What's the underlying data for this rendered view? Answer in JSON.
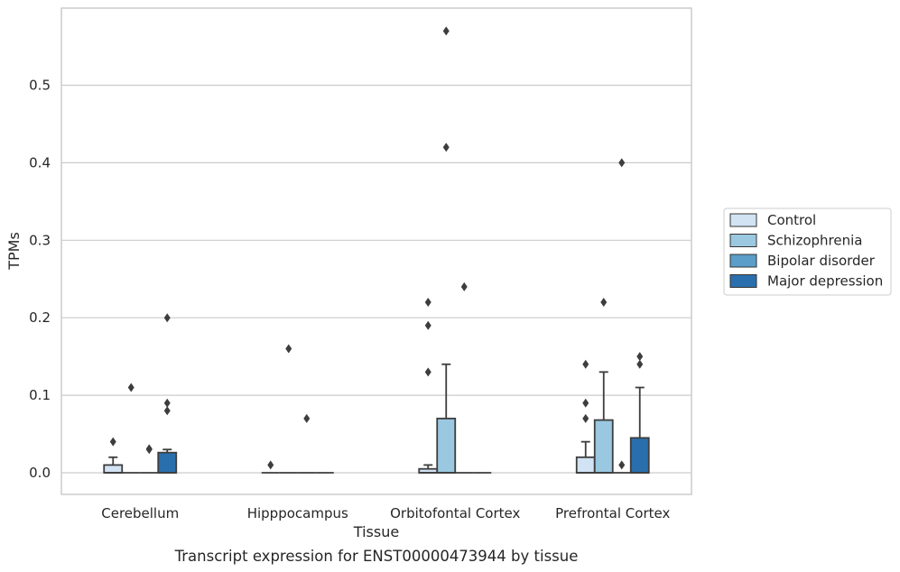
{
  "chart_data": {
    "type": "box",
    "title": "",
    "caption": "Transcript expression for ENST00000473944 by tissue",
    "xlabel": "Tissue",
    "ylabel": "TPMs",
    "ylim": [
      -0.028,
      0.6
    ],
    "yticks": [
      0.0,
      0.1,
      0.2,
      0.3,
      0.4,
      0.5
    ],
    "ytick_labels": [
      "0.0",
      "0.1",
      "0.2",
      "0.3",
      "0.4",
      "0.5"
    ],
    "grid": "horizontal",
    "legend_position": "right",
    "categories": [
      "Cerebellum",
      "Hipppocampus",
      "Orbitofontal Cortex",
      "Prefrontal Cortex"
    ],
    "series": [
      {
        "name": "Control",
        "color": "#d2e3f3",
        "boxes": [
          {
            "q1": 0.0,
            "median": 0.0,
            "q3": 0.01,
            "whisker_low": 0.0,
            "whisker_high": 0.02,
            "outliers": [
              0.04
            ]
          },
          {
            "q1": 0.0,
            "median": 0.0,
            "q3": 0.0,
            "whisker_low": 0.0,
            "whisker_high": 0.0,
            "outliers": [
              0.01
            ]
          },
          {
            "q1": 0.0,
            "median": 0.0,
            "q3": 0.005,
            "whisker_low": 0.0,
            "whisker_high": 0.01,
            "outliers": [
              0.13,
              0.19,
              0.22
            ]
          },
          {
            "q1": 0.0,
            "median": 0.0,
            "q3": 0.02,
            "whisker_low": 0.0,
            "whisker_high": 0.04,
            "outliers": [
              0.07,
              0.09,
              0.14
            ]
          }
        ]
      },
      {
        "name": "Schizophrenia",
        "color": "#9ac8e0",
        "boxes": [
          {
            "q1": 0.0,
            "median": 0.0,
            "q3": 0.0,
            "whisker_low": 0.0,
            "whisker_high": 0.0,
            "outliers": [
              0.11
            ]
          },
          {
            "q1": 0.0,
            "median": 0.0,
            "q3": 0.0,
            "whisker_low": 0.0,
            "whisker_high": 0.0,
            "outliers": [
              0.16
            ]
          },
          {
            "q1": 0.0,
            "median": 0.0,
            "q3": 0.07,
            "whisker_low": 0.0,
            "whisker_high": 0.14,
            "outliers": [
              0.42,
              0.57
            ]
          },
          {
            "q1": 0.0,
            "median": 0.0,
            "q3": 0.068,
            "whisker_low": 0.0,
            "whisker_high": 0.13,
            "outliers": [
              0.22
            ]
          }
        ]
      },
      {
        "name": "Bipolar disorder",
        "color": "#5a9ec9",
        "boxes": [
          {
            "q1": 0.0,
            "median": 0.0,
            "q3": 0.0,
            "whisker_low": 0.0,
            "whisker_high": 0.0,
            "outliers": [
              0.03,
              0.031
            ]
          },
          {
            "q1": 0.0,
            "median": 0.0,
            "q3": 0.0,
            "whisker_low": 0.0,
            "whisker_high": 0.0,
            "outliers": [
              0.07
            ]
          },
          {
            "q1": 0.0,
            "median": 0.0,
            "q3": 0.0,
            "whisker_low": 0.0,
            "whisker_high": 0.0,
            "outliers": [
              0.24
            ]
          },
          {
            "q1": 0.0,
            "median": 0.0,
            "q3": 0.0,
            "whisker_low": 0.0,
            "whisker_high": 0.0,
            "outliers": [
              0.01,
              0.4
            ]
          }
        ]
      },
      {
        "name": "Major depression",
        "color": "#2a6fad",
        "boxes": [
          {
            "q1": 0.0,
            "median": 0.0,
            "q3": 0.026,
            "whisker_low": 0.0,
            "whisker_high": 0.03,
            "outliers": [
              0.08,
              0.09,
              0.2
            ]
          },
          {
            "q1": 0.0,
            "median": 0.0,
            "q3": 0.0,
            "whisker_low": 0.0,
            "whisker_high": 0.0,
            "outliers": []
          },
          {
            "q1": 0.0,
            "median": 0.0,
            "q3": 0.0,
            "whisker_low": 0.0,
            "whisker_high": 0.0,
            "outliers": []
          },
          {
            "q1": 0.0,
            "median": 0.0,
            "q3": 0.045,
            "whisker_low": 0.0,
            "whisker_high": 0.11,
            "outliers": [
              0.14,
              0.15
            ]
          }
        ]
      }
    ]
  }
}
